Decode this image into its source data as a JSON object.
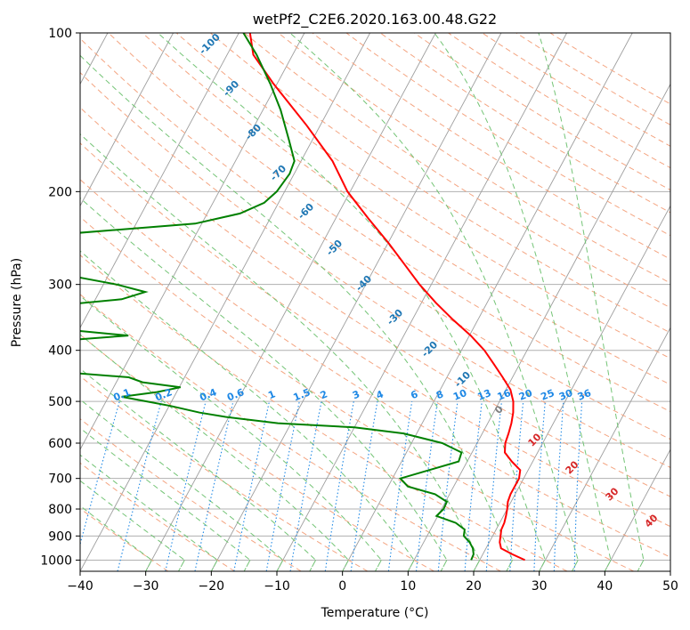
{
  "chart_data": {
    "type": "line",
    "title": "wetPf2_C2E6.2020.163.00.48.G22",
    "xlabel": "Temperature (°C)",
    "ylabel": "Pressure (hPa)",
    "xlim": [
      -40,
      50
    ],
    "ylim": [
      1050,
      100
    ],
    "y_scale": "log",
    "grid": true,
    "x_ticks": [
      "−40",
      "−30",
      "−20",
      "−10",
      "0",
      "10",
      "20",
      "30",
      "40",
      "50"
    ],
    "y_ticks": [
      "100",
      "200",
      "300",
      "400",
      "500",
      "600",
      "700",
      "800",
      "900",
      "1000"
    ],
    "series": [
      {
        "color": "#ff0000",
        "points": [
          {
            "p": 1000,
            "t": 26.9
          },
          {
            "p": 975,
            "t": 24.5
          },
          {
            "p": 950,
            "t": 22.3
          },
          {
            "p": 925,
            "t": 21.6
          },
          {
            "p": 900,
            "t": 21.2
          },
          {
            "p": 875,
            "t": 20.8
          },
          {
            "p": 850,
            "t": 20.7
          },
          {
            "p": 825,
            "t": 20.4
          },
          {
            "p": 800,
            "t": 20.0
          },
          {
            "p": 775,
            "t": 19.5
          },
          {
            "p": 750,
            "t": 19.3
          },
          {
            "p": 725,
            "t": 19.3
          },
          {
            "p": 700,
            "t": 19.3
          },
          {
            "p": 675,
            "t": 18.8
          },
          {
            "p": 650,
            "t": 16.8
          },
          {
            "p": 625,
            "t": 15.0
          },
          {
            "p": 600,
            "t": 14.3
          },
          {
            "p": 575,
            "t": 14.0
          },
          {
            "p": 550,
            "t": 13.6
          },
          {
            "p": 525,
            "t": 13.0
          },
          {
            "p": 500,
            "t": 12.1
          },
          {
            "p": 475,
            "t": 10.7
          },
          {
            "p": 450,
            "t": 8.5
          },
          {
            "p": 425,
            "t": 6.1
          },
          {
            "p": 400,
            "t": 3.5
          },
          {
            "p": 375,
            "t": 0.2
          },
          {
            "p": 350,
            "t": -3.8
          },
          {
            "p": 325,
            "t": -7.8
          },
          {
            "p": 300,
            "t": -11.8
          },
          {
            "p": 275,
            "t": -15.7
          },
          {
            "p": 250,
            "t": -20.0
          },
          {
            "p": 225,
            "t": -25.0
          },
          {
            "p": 200,
            "t": -30.4
          },
          {
            "p": 175,
            "t": -35.2
          },
          {
            "p": 150,
            "t": -42.0
          },
          {
            "p": 125,
            "t": -50.5
          },
          {
            "p": 110,
            "t": -56.0
          },
          {
            "p": 100,
            "t": -58.3
          }
        ]
      },
      {
        "color": "#008000",
        "points": [
          {
            "p": 1000,
            "t": 18.7
          },
          {
            "p": 975,
            "t": 18.6
          },
          {
            "p": 950,
            "t": 18.0
          },
          {
            "p": 925,
            "t": 17.0
          },
          {
            "p": 900,
            "t": 15.6
          },
          {
            "p": 875,
            "t": 15.2
          },
          {
            "p": 850,
            "t": 13.3
          },
          {
            "p": 825,
            "t": 9.8
          },
          {
            "p": 800,
            "t": 10.3
          },
          {
            "p": 775,
            "t": 10.2
          },
          {
            "p": 750,
            "t": 7.8
          },
          {
            "p": 725,
            "t": 3.0
          },
          {
            "p": 700,
            "t": 1.2
          },
          {
            "p": 675,
            "t": 4.9
          },
          {
            "p": 650,
            "t": 8.7
          },
          {
            "p": 625,
            "t": 8.4
          },
          {
            "p": 600,
            "t": 4.7
          },
          {
            "p": 575,
            "t": -2.0
          },
          {
            "p": 560,
            "t": -10.0
          },
          {
            "p": 550,
            "t": -22.0
          },
          {
            "p": 535,
            "t": -30.5
          },
          {
            "p": 525,
            "t": -34.8
          },
          {
            "p": 510,
            "t": -39.8
          },
          {
            "p": 500,
            "t": -43.8
          },
          {
            "p": 490,
            "t": -48.0
          },
          {
            "p": 480,
            "t": -43.0
          },
          {
            "p": 470,
            "t": -39.8
          },
          {
            "p": 460,
            "t": -46.0
          },
          {
            "p": 450,
            "t": -48.5
          },
          {
            "p": 430,
            "t": -70.0
          },
          {
            "p": 400,
            "t": -80.0
          },
          {
            "p": 385,
            "t": -63.6
          },
          {
            "p": 375,
            "t": -52.0
          },
          {
            "p": 360,
            "t": -68.0
          },
          {
            "p": 345,
            "t": -78.0
          },
          {
            "p": 330,
            "t": -66.6
          },
          {
            "p": 320,
            "t": -56.0
          },
          {
            "p": 310,
            "t": -53.0
          },
          {
            "p": 300,
            "t": -58.0
          },
          {
            "p": 290,
            "t": -65.0
          },
          {
            "p": 275,
            "t": -66.0
          },
          {
            "p": 245,
            "t": -72.3
          },
          {
            "p": 240,
            "t": -69.0
          },
          {
            "p": 230,
            "t": -51.0
          },
          {
            "p": 220,
            "t": -45.0
          },
          {
            "p": 210,
            "t": -42.2
          },
          {
            "p": 200,
            "t": -41.2
          },
          {
            "p": 185,
            "t": -40.7
          },
          {
            "p": 175,
            "t": -41.0
          },
          {
            "p": 160,
            "t": -43.5
          },
          {
            "p": 140,
            "t": -47.3
          },
          {
            "p": 125,
            "t": -51.0
          },
          {
            "p": 110,
            "t": -55.5
          },
          {
            "p": 100,
            "t": -59.3
          }
        ]
      }
    ],
    "dry_adiabat_labels": [
      "-100",
      "-90",
      "-80",
      "-70",
      "-60",
      "-50",
      "-40",
      "-30",
      "-20",
      "-10",
      "0",
      "10",
      "20",
      "30",
      "40"
    ],
    "mixing_ratio_labels": [
      "0.1",
      "0.2",
      "0.4",
      "0.6",
      "1",
      "1.5",
      "2",
      "3",
      "4",
      "6",
      "8",
      "10",
      "13",
      "16",
      "20",
      "25",
      "30",
      "36"
    ],
    "colors": {
      "temperature": "#ff0000",
      "dewpoint": "#008000",
      "dry_adiabats": "#f4a582",
      "moist_adiabats": "#74c476",
      "mixing_ratio": "#1e88e5",
      "isotherms": "#808080",
      "isobars": "#a9a9a9"
    }
  }
}
